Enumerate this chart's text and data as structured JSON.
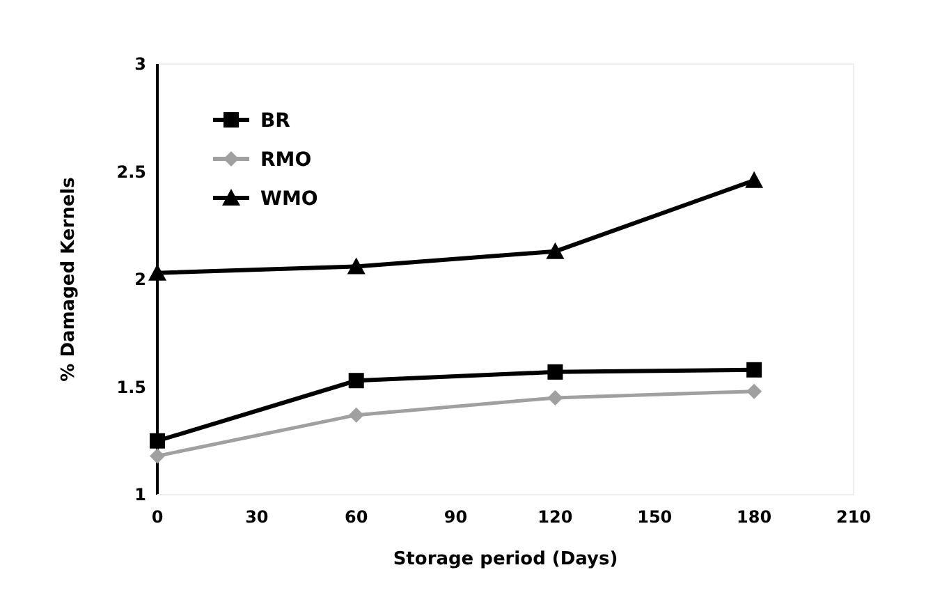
{
  "chart_data": {
    "type": "line",
    "xlabel": "Storage period (Days)",
    "ylabel": "% Damaged Kernels",
    "x": [
      0,
      60,
      120,
      180
    ],
    "xlim": [
      0,
      210
    ],
    "xticks": [
      0,
      30,
      60,
      90,
      120,
      150,
      180,
      210
    ],
    "ylim": [
      1,
      3
    ],
    "yticks": [
      1,
      1.5,
      2,
      2.5,
      3
    ],
    "grid": false,
    "legend": "top left",
    "series": [
      {
        "name": "BR",
        "color": "#000000",
        "marker": "square",
        "values": [
          1.25,
          1.53,
          1.57,
          1.58
        ]
      },
      {
        "name": "RMO",
        "color": "#a0a0a0",
        "marker": "diamond",
        "values": [
          1.18,
          1.37,
          1.45,
          1.48
        ]
      },
      {
        "name": "WMO",
        "color": "#000000",
        "marker": "triangle",
        "values": [
          2.03,
          2.06,
          2.13,
          2.46
        ]
      }
    ]
  }
}
